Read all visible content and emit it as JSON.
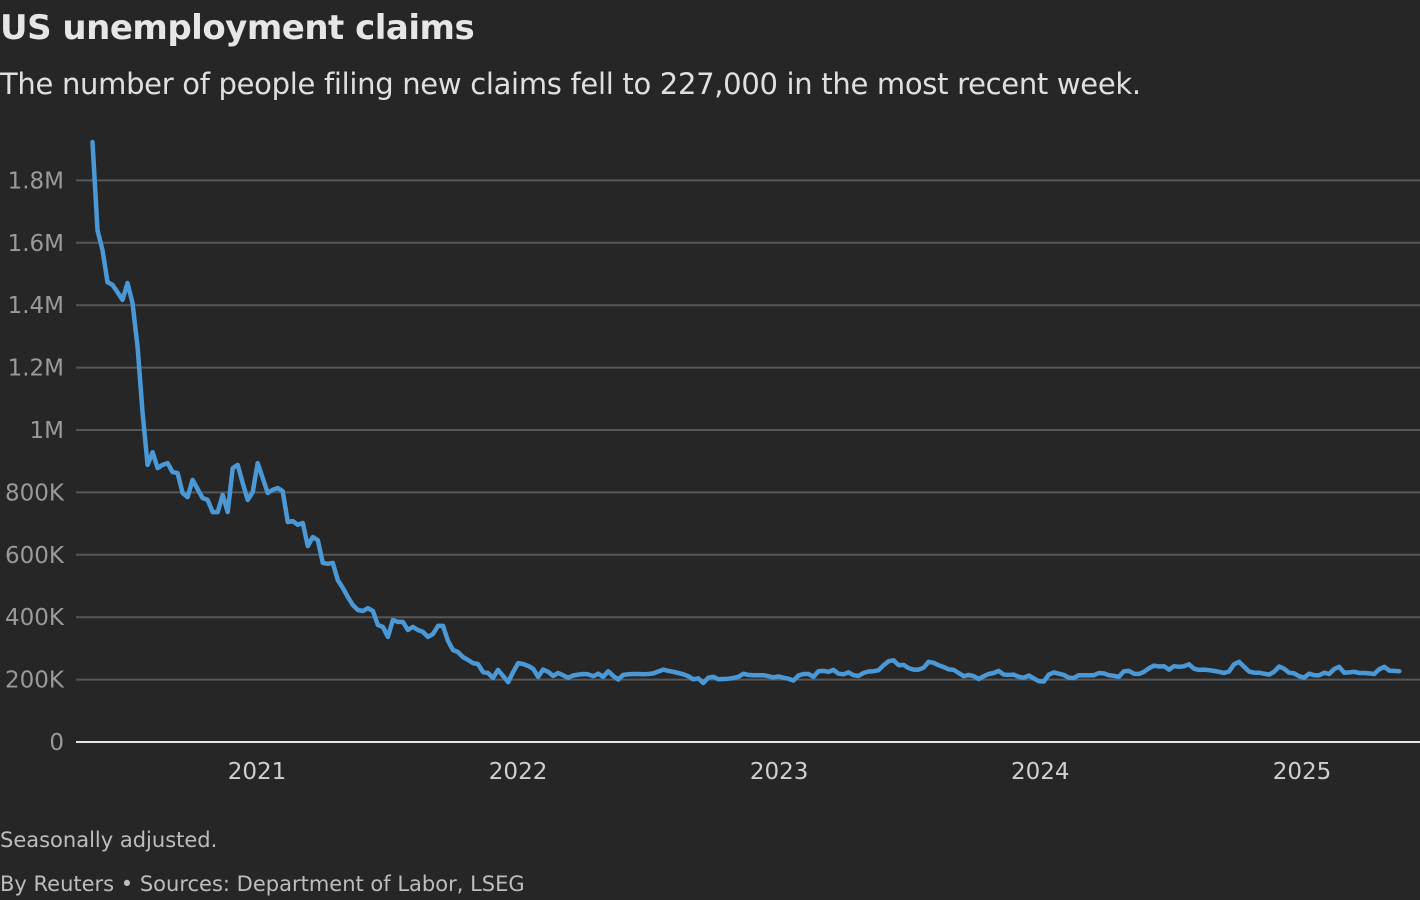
{
  "title": "US unemployment claims",
  "subtitle": "The number of people filing new claims fell to 227,000 in the most recent week.",
  "footnote": "Seasonally adjusted.",
  "source": "By Reuters • Sources: Department of Labor, LSEG",
  "colors": {
    "background": "#262626",
    "line": "#4a98d6",
    "grid": "#575757",
    "baseline": "#e6e6e6"
  },
  "chart_data": {
    "type": "line",
    "title": "US unemployment claims",
    "xlabel": "",
    "ylabel": "",
    "ylim": [
      0,
      1900000
    ],
    "grid": true,
    "legend": "none",
    "y_ticks": [
      {
        "value": 0,
        "label": "0"
      },
      {
        "value": 200000,
        "label": "200K"
      },
      {
        "value": 400000,
        "label": "400K"
      },
      {
        "value": 600000,
        "label": "600K"
      },
      {
        "value": 800000,
        "label": "800K"
      },
      {
        "value": 1000000,
        "label": "1M"
      },
      {
        "value": 1200000,
        "label": "1.2M"
      },
      {
        "value": 1400000,
        "label": "1.4M"
      },
      {
        "value": 1600000,
        "label": "1.6M"
      },
      {
        "value": 1800000,
        "label": "1.8M"
      }
    ],
    "x_ticks": [
      {
        "date": "2021-01-01",
        "label": "2021"
      },
      {
        "date": "2022-01-01",
        "label": "2022"
      },
      {
        "date": "2023-01-01",
        "label": "2023"
      },
      {
        "date": "2024-01-01",
        "label": "2024"
      },
      {
        "date": "2025-01-01",
        "label": "2025"
      }
    ],
    "x": {
      "start": "2020-05-16",
      "frequency": "weekly"
    },
    "series": [
      {
        "unit": "thousands",
        "values": [
          1923,
          1640,
          1577,
          1474,
          1465,
          1442,
          1417,
          1471,
          1407,
          1266,
          1054,
          888,
          929,
          878,
          888,
          894,
          865,
          862,
          798,
          785,
          840,
          811,
          782,
          776,
          737,
          737,
          792,
          737,
          878,
          888,
          830,
          776,
          801,
          894,
          846,
          798,
          808,
          814,
          804,
          705,
          708,
          696,
          702,
          628,
          657,
          647,
          574,
          571,
          574,
          519,
          494,
          465,
          439,
          423,
          420,
          429,
          420,
          375,
          369,
          337,
          391,
          385,
          385,
          359,
          369,
          359,
          353,
          337,
          346,
          372,
          372,
          324,
          295,
          288,
          272,
          263,
          253,
          250,
          224,
          221,
          205,
          231,
          212,
          192,
          224,
          253,
          250,
          244,
          235,
          209,
          232,
          225,
          212,
          221,
          214,
          206,
          213,
          216,
          218,
          217,
          211,
          219,
          209,
          227,
          212,
          200,
          215,
          217,
          218,
          218,
          217,
          218,
          220,
          226,
          232,
          228,
          225,
          221,
          217,
          211,
          201,
          204,
          189,
          206,
          209,
          201,
          202,
          203,
          205,
          209,
          219,
          215,
          214,
          214,
          214,
          211,
          207,
          210,
          206,
          203,
          197,
          213,
          218,
          218,
          209,
          227,
          228,
          225,
          231,
          219,
          217,
          223,
          214,
          212,
          221,
          226,
          227,
          230,
          246,
          259,
          262,
          246,
          247,
          237,
          232,
          232,
          238,
          257,
          254,
          246,
          240,
          233,
          231,
          221,
          211,
          215,
          211,
          202,
          211,
          218,
          221,
          228,
          216,
          215,
          216,
          209,
          206,
          213,
          204,
          195,
          194,
          216,
          223,
          219,
          215,
          206,
          205,
          214,
          214,
          214,
          214,
          221,
          220,
          214,
          212,
          209,
          227,
          228,
          219,
          218,
          225,
          236,
          245,
          242,
          243,
          232,
          243,
          241,
          243,
          249,
          235,
          231,
          232,
          230,
          228,
          225,
          221,
          226,
          249,
          257,
          241,
          226,
          222,
          222,
          219,
          216,
          225,
          242,
          235,
          222,
          220,
          211,
          206,
          219,
          214,
          214,
          222,
          218,
          234,
          241,
          222,
          223,
          225,
          221,
          221,
          220,
          218,
          233,
          241,
          229,
          228,
          227
        ]
      }
    ]
  }
}
